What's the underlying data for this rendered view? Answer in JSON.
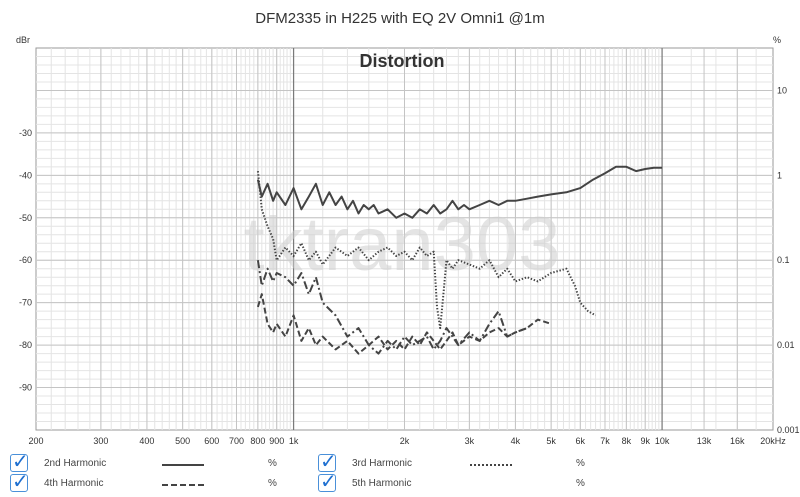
{
  "chart_data": {
    "type": "line",
    "title": "DFM2335 in H225 with EQ 2V Omni1 @1m",
    "subtitle": "Distortion",
    "watermark": "tktran303",
    "left_axis_unit": "dBr",
    "right_axis_unit": "%",
    "x_scale": "log",
    "xlim": [
      200,
      20000
    ],
    "ylim": [
      -100,
      -10
    ],
    "grid": true,
    "x_tick_labels": [
      {
        "v": 200,
        "t": "200"
      },
      {
        "v": 300,
        "t": "300"
      },
      {
        "v": 400,
        "t": "400"
      },
      {
        "v": 500,
        "t": "500"
      },
      {
        "v": 600,
        "t": "600"
      },
      {
        "v": 700,
        "t": "700"
      },
      {
        "v": 800,
        "t": "800"
      },
      {
        "v": 900,
        "t": "900"
      },
      {
        "v": 1000,
        "t": "1k"
      },
      {
        "v": 2000,
        "t": "2k"
      },
      {
        "v": 3000,
        "t": "3k"
      },
      {
        "v": 4000,
        "t": "4k"
      },
      {
        "v": 5000,
        "t": "5k"
      },
      {
        "v": 6000,
        "t": "6k"
      },
      {
        "v": 7000,
        "t": "7k"
      },
      {
        "v": 8000,
        "t": "8k"
      },
      {
        "v": 9000,
        "t": "9k"
      },
      {
        "v": 10000,
        "t": "10k"
      },
      {
        "v": 13000,
        "t": "13k"
      },
      {
        "v": 16000,
        "t": "16k"
      },
      {
        "v": 20000,
        "t": "20kHz"
      }
    ],
    "y_tick_labels": [
      {
        "v": -30,
        "t": "-30"
      },
      {
        "v": -40,
        "t": "-40"
      },
      {
        "v": -50,
        "t": "-50"
      },
      {
        "v": -60,
        "t": "-60"
      },
      {
        "v": -70,
        "t": "-70"
      },
      {
        "v": -80,
        "t": "-80"
      },
      {
        "v": -90,
        "t": "-90"
      }
    ],
    "right_tick_labels": [
      {
        "v": -20,
        "t": "10"
      },
      {
        "v": -40,
        "t": "1"
      },
      {
        "v": -60,
        "t": "0.1"
      },
      {
        "v": -80,
        "t": "0.01"
      },
      {
        "v": -100,
        "t": "0.001"
      }
    ],
    "series": [
      {
        "name": "2nd Harmonic",
        "dash": "solid",
        "color": "#444444",
        "x": [
          800,
          820,
          850,
          880,
          900,
          950,
          1000,
          1050,
          1100,
          1150,
          1200,
          1250,
          1300,
          1350,
          1400,
          1450,
          1500,
          1550,
          1600,
          1650,
          1700,
          1800,
          1900,
          2000,
          2100,
          2200,
          2300,
          2400,
          2500,
          2600,
          2700,
          2800,
          2900,
          3000,
          3200,
          3400,
          3600,
          3800,
          4000,
          4300,
          4600,
          5000,
          5500,
          6000,
          6500,
          7000,
          7500,
          8000,
          8500,
          9000,
          9500,
          10000
        ],
        "y": [
          -41,
          -45,
          -42,
          -46,
          -44,
          -47,
          -43,
          -48,
          -45,
          -42,
          -47,
          -44,
          -47,
          -45,
          -48,
          -46,
          -49,
          -47,
          -48,
          -47,
          -49,
          -48,
          -50,
          -49,
          -50,
          -48,
          -49,
          -47,
          -49,
          -48,
          -46,
          -48,
          -47,
          -48,
          -47,
          -46,
          -47,
          -46,
          -46,
          -45.5,
          -45,
          -44.5,
          -44,
          -43,
          -41,
          -39.5,
          -38,
          -38,
          -39,
          -38.5,
          -38.2,
          -38.2
        ]
      },
      {
        "name": "3rd Harmonic",
        "dash": "dotted",
        "color": "#444444",
        "x": [
          800,
          820,
          850,
          880,
          900,
          950,
          1000,
          1050,
          1100,
          1150,
          1200,
          1300,
          1400,
          1500,
          1600,
          1700,
          1800,
          1900,
          2000,
          2100,
          2200,
          2300,
          2400,
          2450,
          2500,
          2550,
          2600,
          2700,
          2800,
          3000,
          3200,
          3400,
          3600,
          3800,
          4000,
          4300,
          4600,
          5000,
          5500,
          5800,
          6000,
          6300,
          6600
        ],
        "y": [
          -39,
          -48,
          -52,
          -55,
          -60,
          -57,
          -59,
          -56,
          -60,
          -58,
          -61,
          -57,
          -59,
          -57,
          -60,
          -58,
          -57,
          -59,
          -58,
          -60,
          -57,
          -59,
          -58,
          -71,
          -76,
          -68,
          -60,
          -62,
          -60,
          -61,
          -62,
          -60,
          -64,
          -62,
          -65,
          -64,
          -65,
          -63,
          -62,
          -66,
          -70,
          -72,
          -73
        ]
      },
      {
        "name": "4th Harmonic",
        "dash": "dashed",
        "color": "#444444",
        "x": [
          800,
          820,
          850,
          880,
          900,
          950,
          1000,
          1050,
          1100,
          1150,
          1200,
          1300,
          1400,
          1500,
          1600,
          1700,
          1800,
          1900,
          2000,
          2100,
          2200,
          2300,
          2400,
          2500,
          2600,
          2700,
          2800,
          3000,
          3200,
          3400,
          3600,
          3800,
          4000,
          4300,
          4600,
          5000
        ],
        "y": [
          -71,
          -68,
          -75,
          -77,
          -75,
          -78,
          -73,
          -79,
          -76,
          -80,
          -78,
          -81,
          -79,
          -82,
          -80,
          -78,
          -81,
          -79,
          -81,
          -78,
          -80,
          -77,
          -79,
          -81,
          -79,
          -77,
          -80,
          -78,
          -79,
          -77,
          -76,
          -78,
          -77,
          -76,
          -74,
          -75
        ]
      },
      {
        "name": "5th Harmonic",
        "dash": "dashdot",
        "color": "#444444",
        "x": [
          800,
          820,
          850,
          880,
          900,
          950,
          1000,
          1050,
          1100,
          1150,
          1200,
          1300,
          1400,
          1500,
          1600,
          1700,
          1800,
          1900,
          2000,
          2100,
          2200,
          2300,
          2400,
          2500,
          2600,
          2700,
          2800,
          3000,
          3200,
          3400,
          3600,
          3800,
          4000,
          4300
        ],
        "y": [
          -60,
          -66,
          -62,
          -65,
          -63,
          -64,
          -66,
          -63,
          -68,
          -64,
          -70,
          -73,
          -78,
          -76,
          -80,
          -82,
          -79,
          -81,
          -78,
          -80,
          -79,
          -78,
          -81,
          -79,
          -76,
          -78,
          -80,
          -77,
          -79,
          -75,
          -72,
          -78,
          -77,
          -76
        ]
      }
    ]
  },
  "legend": {
    "unit": "%",
    "items": [
      {
        "label": "2nd Harmonic",
        "checked": true
      },
      {
        "label": "3rd Harmonic",
        "checked": true
      },
      {
        "label": "4th Harmonic",
        "checked": true
      },
      {
        "label": "5th Harmonic",
        "checked": true
      }
    ]
  }
}
